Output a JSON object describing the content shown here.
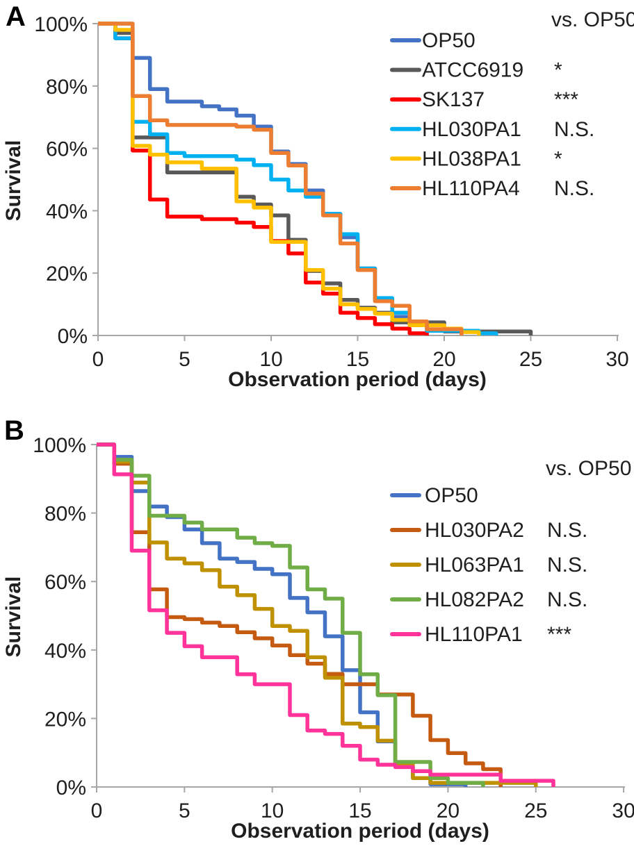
{
  "figure_type": "kaplan-meier-survival-curves",
  "chart_data": [
    {
      "type": "line",
      "subtype": "step-survival",
      "panel_label": "A",
      "legend_header": "vs. OP50",
      "xlabel": "Observation period (days)",
      "ylabel": "Survival",
      "xlim": [
        0,
        30
      ],
      "ylim_pct": [
        0,
        100
      ],
      "x_ticks": [
        "0",
        "5",
        "10",
        "15",
        "20",
        "25",
        "30"
      ],
      "x_tick_values": [
        0,
        5,
        10,
        15,
        20,
        25,
        30
      ],
      "y_tick_labels": [
        "100%",
        "80%",
        "60%",
        "40%",
        "20%",
        "0%"
      ],
      "y_tick_values": [
        100,
        80,
        60,
        40,
        20,
        0
      ],
      "grid": false,
      "legend_position": "top-right-inside",
      "axis_color": "#a6a6a6",
      "series": [
        {
          "name": "OP50",
          "color": "#4472C4",
          "significance": "",
          "points": [
            [
              0,
              100
            ],
            [
              2,
              89
            ],
            [
              3,
              79
            ],
            [
              4,
              75
            ],
            [
              6,
              73.5
            ],
            [
              7,
              72.5
            ],
            [
              8,
              70.5
            ],
            [
              9,
              67
            ],
            [
              10,
              59
            ],
            [
              11,
              55
            ],
            [
              12,
              46.5
            ],
            [
              13,
              39
            ],
            [
              14,
              31.5
            ],
            [
              15,
              21.5
            ],
            [
              16,
              11.5
            ],
            [
              17,
              6
            ],
            [
              18,
              3.3
            ],
            [
              19,
              1.5
            ],
            [
              21,
              0
            ]
          ]
        },
        {
          "name": "ATCC6919",
          "color": "#595959",
          "significance": "*",
          "points": [
            [
              0,
              100
            ],
            [
              1,
              97
            ],
            [
              2,
              63.5
            ],
            [
              4,
              52.3
            ],
            [
              8,
              44.5
            ],
            [
              9,
              42
            ],
            [
              10,
              38.5
            ],
            [
              11,
              30.7
            ],
            [
              12,
              20.7
            ],
            [
              13,
              16.7
            ],
            [
              14,
              11.4
            ],
            [
              15,
              8.9
            ],
            [
              16,
              7.3
            ],
            [
              17,
              4.2
            ],
            [
              20,
              1.3
            ],
            [
              25,
              0
            ]
          ]
        },
        {
          "name": "SK137",
          "color": "#FF0000",
          "significance": "***",
          "points": [
            [
              0,
              100
            ],
            [
              1,
              95.3
            ],
            [
              2,
              59.3
            ],
            [
              3,
              43.6
            ],
            [
              4,
              38.1
            ],
            [
              6,
              37.3
            ],
            [
              8,
              36.2
            ],
            [
              9,
              34.8
            ],
            [
              10,
              30.3
            ],
            [
              11,
              26.3
            ],
            [
              12,
              17
            ],
            [
              13,
              13.4
            ],
            [
              14,
              7.3
            ],
            [
              15,
              5.6
            ],
            [
              16,
              3.6
            ],
            [
              17,
              2.2
            ],
            [
              18,
              0.7
            ],
            [
              19,
              0
            ]
          ]
        },
        {
          "name": "HL030PA1",
          "color": "#00B0F0",
          "significance": "N.S.",
          "points": [
            [
              0,
              100
            ],
            [
              1,
              95.3
            ],
            [
              2,
              68.5
            ],
            [
              3,
              64.5
            ],
            [
              4,
              58.5
            ],
            [
              5,
              57.5
            ],
            [
              8,
              56.4
            ],
            [
              9,
              54.6
            ],
            [
              10,
              50
            ],
            [
              11,
              46.5
            ],
            [
              12,
              44.5
            ],
            [
              13,
              39
            ],
            [
              14,
              32.5
            ],
            [
              15,
              21.5
            ],
            [
              16,
              12
            ],
            [
              17,
              7.3
            ],
            [
              18,
              3.3
            ],
            [
              19,
              1.5
            ],
            [
              22,
              0.7
            ],
            [
              23,
              0
            ]
          ]
        },
        {
          "name": "HL038PA1",
          "color": "#FFC000",
          "significance": "*",
          "points": [
            [
              0,
              100
            ],
            [
              1,
              98
            ],
            [
              2,
              60.8
            ],
            [
              3,
              58
            ],
            [
              4,
              55.5
            ],
            [
              6,
              53.5
            ],
            [
              8,
              43
            ],
            [
              9,
              41
            ],
            [
              10,
              30
            ],
            [
              12,
              21
            ],
            [
              13,
              15
            ],
            [
              14,
              10
            ],
            [
              15,
              8.5
            ],
            [
              16,
              7
            ],
            [
              17,
              5
            ],
            [
              18,
              3.3
            ],
            [
              20,
              2.2
            ],
            [
              21,
              1.1
            ],
            [
              22,
              0
            ]
          ]
        },
        {
          "name": "HL110PA4",
          "color": "#ED7D31",
          "significance": "N.S.",
          "points": [
            [
              0,
              100
            ],
            [
              2,
              76.8
            ],
            [
              3,
              69
            ],
            [
              4,
              67.5
            ],
            [
              8,
              67
            ],
            [
              9,
              66
            ],
            [
              10,
              58.5
            ],
            [
              11,
              54.5
            ],
            [
              12,
              45.5
            ],
            [
              13,
              38.5
            ],
            [
              14,
              29.5
            ],
            [
              15,
              21
            ],
            [
              16,
              11
            ],
            [
              17,
              9.5
            ],
            [
              18,
              4.5
            ],
            [
              19,
              2
            ],
            [
              21,
              0
            ]
          ]
        }
      ]
    },
    {
      "type": "line",
      "subtype": "step-survival",
      "panel_label": "B",
      "legend_header": "vs. OP50",
      "xlabel": "Observation period (days)",
      "ylabel": "Survival",
      "xlim": [
        0,
        30
      ],
      "ylim_pct": [
        0,
        100
      ],
      "x_ticks": [
        "0",
        "5",
        "10",
        "15",
        "20",
        "25",
        "30"
      ],
      "x_tick_values": [
        0,
        5,
        10,
        15,
        20,
        25,
        30
      ],
      "y_tick_labels": [
        "100%",
        "80%",
        "60%",
        "40%",
        "20%",
        "0%"
      ],
      "y_tick_values": [
        100,
        80,
        60,
        40,
        20,
        0
      ],
      "grid": false,
      "legend_position": "top-right-inside",
      "axis_color": "#a6a6a6",
      "series": [
        {
          "name": "OP50",
          "color": "#4472C4",
          "significance": "",
          "points": [
            [
              0,
              100
            ],
            [
              1,
              96.4
            ],
            [
              2,
              86.4
            ],
            [
              3,
              81.9
            ],
            [
              4,
              78.8
            ],
            [
              5,
              75.2
            ],
            [
              6,
              71.2
            ],
            [
              7,
              66.7
            ],
            [
              8,
              65.7
            ],
            [
              9,
              63.7
            ],
            [
              10,
              62.1
            ],
            [
              11,
              55.2
            ],
            [
              12,
              51
            ],
            [
              13,
              44
            ],
            [
              14,
              34.1
            ],
            [
              15,
              21.8
            ],
            [
              16,
              13.3
            ],
            [
              17,
              6
            ],
            [
              18,
              2.6
            ],
            [
              19,
              0.8
            ],
            [
              21,
              0
            ]
          ]
        },
        {
          "name": "HL030PA2",
          "color": "#C55A11",
          "significance": "N.S.",
          "points": [
            [
              0,
              100
            ],
            [
              1,
              94.4
            ],
            [
              2,
              74.4
            ],
            [
              3,
              57.7
            ],
            [
              4,
              49.6
            ],
            [
              5,
              49
            ],
            [
              6,
              48
            ],
            [
              7,
              47
            ],
            [
              8,
              45.2
            ],
            [
              9,
              43.4
            ],
            [
              10,
              41.3
            ],
            [
              11,
              38.5
            ],
            [
              12,
              36
            ],
            [
              13,
              33
            ],
            [
              14,
              30
            ],
            [
              16,
              27
            ],
            [
              18,
              20.8
            ],
            [
              19,
              13.7
            ],
            [
              20,
              9.9
            ],
            [
              21,
              6.9
            ],
            [
              22,
              5.2
            ],
            [
              23,
              0
            ]
          ]
        },
        {
          "name": "HL063PA1",
          "color": "#BF9000",
          "significance": "N.S.",
          "points": [
            [
              0,
              100
            ],
            [
              1,
              95
            ],
            [
              2,
              88.9
            ],
            [
              3,
              71.4
            ],
            [
              4,
              66.7
            ],
            [
              5,
              65.3
            ],
            [
              6,
              63.3
            ],
            [
              7,
              58.5
            ],
            [
              8,
              56
            ],
            [
              9,
              52
            ],
            [
              10,
              47
            ],
            [
              11,
              45.6
            ],
            [
              12,
              37.9
            ],
            [
              13,
              31.9
            ],
            [
              14,
              18.5
            ],
            [
              15,
              17.5
            ],
            [
              16,
              13.5
            ],
            [
              17,
              6.7
            ],
            [
              18,
              2.6
            ],
            [
              19,
              1.2
            ],
            [
              25,
              0
            ]
          ]
        },
        {
          "name": "HL082PA2",
          "color": "#70AD47",
          "significance": "N.S.",
          "points": [
            [
              0,
              100
            ],
            [
              1,
              95.6
            ],
            [
              2,
              90.9
            ],
            [
              3,
              79.2
            ],
            [
              5,
              77.2
            ],
            [
              6,
              75.2
            ],
            [
              8,
              72.8
            ],
            [
              9,
              71.2
            ],
            [
              10,
              70.4
            ],
            [
              11,
              64.1
            ],
            [
              12,
              57.7
            ],
            [
              13,
              55
            ],
            [
              14,
              45
            ],
            [
              15,
              32.9
            ],
            [
              16,
              26.8
            ],
            [
              17,
              7.3
            ],
            [
              19,
              2.6
            ],
            [
              20,
              1.2
            ],
            [
              22,
              0
            ]
          ]
        },
        {
          "name": "HL110PA1",
          "color": "#FF3399",
          "significance": "***",
          "points": [
            [
              0,
              100
            ],
            [
              1,
              91.3
            ],
            [
              2,
              69
            ],
            [
              3,
              51.6
            ],
            [
              4,
              45
            ],
            [
              5,
              41.1
            ],
            [
              6,
              37.9
            ],
            [
              8,
              32.9
            ],
            [
              9,
              30
            ],
            [
              11,
              21
            ],
            [
              12,
              16.5
            ],
            [
              13,
              15.5
            ],
            [
              14,
              12
            ],
            [
              15,
              8
            ],
            [
              16,
              6.5
            ],
            [
              17,
              5.8
            ],
            [
              18,
              4.6
            ],
            [
              19,
              3.6
            ],
            [
              23,
              1.8
            ],
            [
              26,
              0
            ]
          ]
        }
      ]
    }
  ]
}
